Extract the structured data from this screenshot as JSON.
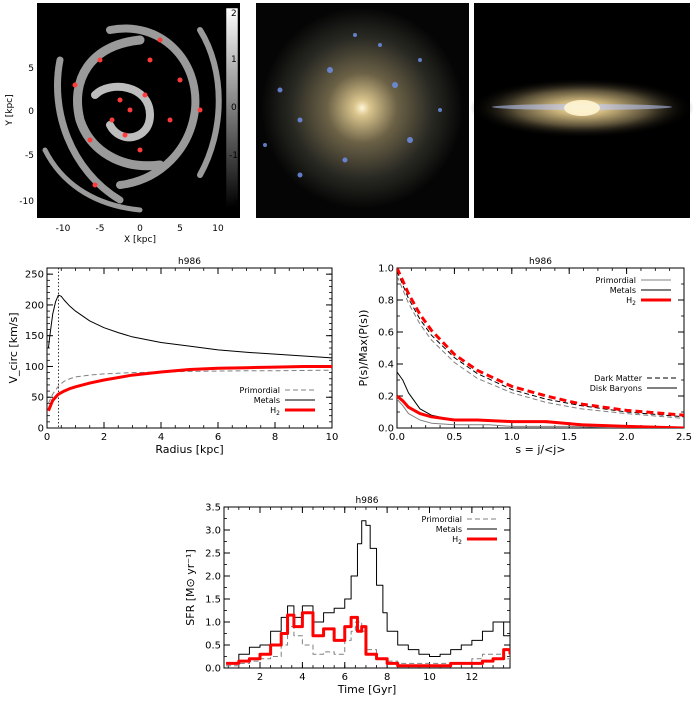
{
  "images": {
    "h2_map": {
      "xlabel": "X [kpc]",
      "ylabel": "Y [kpc]",
      "xticks": [
        -10,
        -5,
        0,
        5,
        10
      ],
      "yticks": [
        5,
        0,
        -5,
        -10
      ],
      "colorbar_ticks": [
        2,
        1,
        0,
        -1,
        -2
      ]
    }
  },
  "chart_data": [
    {
      "type": "line",
      "title": "h986",
      "xlabel": "Radius [kpc]",
      "ylabel": "V_circ [km/s]",
      "xlim": [
        0,
        10
      ],
      "ylim": [
        0,
        260
      ],
      "xticks": [
        0,
        2,
        4,
        6,
        8,
        10
      ],
      "yticks": [
        0,
        50,
        100,
        150,
        200,
        250
      ],
      "vline": 0.4,
      "legend": [
        "Primordial",
        "Metals",
        "H2"
      ],
      "legend_position": "bottom-right",
      "series": [
        {
          "name": "Primordial",
          "style": "dashed",
          "color": "#808080",
          "x": [
            0.05,
            0.2,
            0.4,
            0.6,
            0.8,
            1.0,
            1.5,
            2,
            3,
            4,
            5,
            6,
            7,
            8,
            9,
            10
          ],
          "y": [
            40,
            55,
            68,
            76,
            80,
            83,
            86,
            88,
            90,
            91,
            92,
            92.5,
            93,
            93,
            93.5,
            94
          ]
        },
        {
          "name": "Metals",
          "style": "solid",
          "color": "#000000",
          "x": [
            0.05,
            0.1,
            0.2,
            0.3,
            0.4,
            0.5,
            0.6,
            0.8,
            1.0,
            1.5,
            2,
            2.5,
            3,
            4,
            5,
            6,
            7,
            8,
            9,
            10
          ],
          "y": [
            130,
            150,
            185,
            205,
            216,
            214,
            208,
            198,
            190,
            174,
            163,
            155,
            148,
            139,
            133,
            127,
            123,
            120,
            117,
            114
          ]
        },
        {
          "name": "H2",
          "style": "thick",
          "color": "#ff0000",
          "x": [
            0.05,
            0.2,
            0.4,
            0.6,
            0.8,
            1.0,
            1.5,
            2,
            3,
            4,
            5,
            6,
            7,
            8,
            9,
            10
          ],
          "y": [
            28,
            45,
            55,
            60,
            64,
            67,
            73,
            78,
            86,
            91,
            95,
            97,
            98,
            99,
            100,
            100
          ]
        }
      ]
    },
    {
      "type": "line",
      "title": "h986",
      "xlabel": "s = j/<j>",
      "ylabel": "P(s)/Max(P(s))",
      "xlim": [
        0,
        2.5
      ],
      "ylim": [
        0,
        1.0
      ],
      "xticks": [
        0.0,
        0.5,
        1.0,
        1.5,
        2.0,
        2.5
      ],
      "yticks": [
        0.0,
        0.2,
        0.4,
        0.6,
        0.8,
        1.0
      ],
      "legend": [
        "Primordial",
        "Metals",
        "H2"
      ],
      "legend_position": "top-right",
      "legend2": [
        "Dark Matter",
        "Disk Baryons"
      ],
      "legend2_position": "right",
      "series": [
        {
          "name": "Primordial",
          "group": "Dark Matter",
          "style": "dashed",
          "color": "#808080",
          "x": [
            0,
            0.1,
            0.2,
            0.3,
            0.5,
            0.7,
            1.0,
            1.3,
            1.6,
            2.0,
            2.5
          ],
          "y": [
            0.95,
            0.78,
            0.65,
            0.55,
            0.41,
            0.31,
            0.22,
            0.16,
            0.12,
            0.09,
            0.06
          ]
        },
        {
          "name": "Metals",
          "group": "Dark Matter",
          "style": "dashed",
          "color": "#000000",
          "x": [
            0,
            0.1,
            0.2,
            0.3,
            0.5,
            0.7,
            1.0,
            1.3,
            1.6,
            2.0,
            2.5
          ],
          "y": [
            0.98,
            0.81,
            0.68,
            0.58,
            0.44,
            0.34,
            0.24,
            0.18,
            0.14,
            0.1,
            0.07
          ]
        },
        {
          "name": "H2",
          "group": "Dark Matter",
          "style": "thick-dashed",
          "color": "#ff0000",
          "x": [
            0,
            0.1,
            0.2,
            0.3,
            0.5,
            0.7,
            1.0,
            1.3,
            1.6,
            2.0,
            2.5
          ],
          "y": [
            1.0,
            0.84,
            0.71,
            0.61,
            0.46,
            0.36,
            0.26,
            0.2,
            0.15,
            0.11,
            0.08
          ]
        },
        {
          "name": "Primordial",
          "group": "Disk Baryons",
          "style": "solid",
          "color": "#808080",
          "x": [
            0,
            0.05,
            0.1,
            0.2,
            0.3,
            0.5,
            0.8,
            1.0,
            1.5,
            2.0,
            2.5
          ],
          "y": [
            0.18,
            0.14,
            0.09,
            0.05,
            0.03,
            0.02,
            0.02,
            0.01,
            0.01,
            0.0,
            0.0
          ]
        },
        {
          "name": "Metals",
          "group": "Disk Baryons",
          "style": "solid",
          "color": "#000000",
          "x": [
            0,
            0.05,
            0.1,
            0.2,
            0.3,
            0.5,
            0.8,
            1.0,
            1.5,
            2.0,
            2.5
          ],
          "y": [
            0.35,
            0.3,
            0.22,
            0.12,
            0.08,
            0.05,
            0.05,
            0.04,
            0.03,
            0.01,
            0.0
          ]
        },
        {
          "name": "H2",
          "group": "Disk Baryons",
          "style": "thick",
          "color": "#ff0000",
          "x": [
            0,
            0.05,
            0.1,
            0.2,
            0.3,
            0.5,
            0.7,
            1.0,
            1.3,
            1.6,
            2.0,
            2.5
          ],
          "y": [
            0.2,
            0.17,
            0.13,
            0.09,
            0.07,
            0.05,
            0.05,
            0.04,
            0.04,
            0.02,
            0.01,
            0.0
          ]
        }
      ]
    },
    {
      "type": "line",
      "title": "h986",
      "xlabel": "Time [Gyr]",
      "ylabel": "SFR [M⊙ yr⁻¹]",
      "xlim": [
        0.3,
        13.8
      ],
      "ylim": [
        0,
        3.5
      ],
      "xticks": [
        2,
        4,
        6,
        8,
        10,
        12
      ],
      "yticks": [
        0.0,
        0.5,
        1.0,
        1.5,
        2.0,
        2.5,
        3.0,
        3.5
      ],
      "legend": [
        "Primordial",
        "Metals",
        "H2"
      ],
      "legend_position": "top-right",
      "series": [
        {
          "name": "Primordial",
          "style": "dashed-step",
          "color": "#808080",
          "x": [
            0.4,
            1.0,
            1.5,
            2.0,
            2.5,
            3.0,
            3.3,
            3.6,
            4.0,
            4.5,
            5.0,
            5.5,
            6.0,
            6.3,
            6.5,
            6.8,
            7.0,
            7.5,
            8.0,
            8.5,
            9.0,
            10.0,
            11.0,
            12.0,
            12.5,
            13.0,
            13.5,
            13.8
          ],
          "y": [
            0.05,
            0.1,
            0.15,
            0.2,
            0.25,
            0.5,
            0.9,
            0.7,
            0.5,
            0.3,
            0.35,
            0.3,
            0.6,
            0.8,
            1.0,
            0.8,
            0.4,
            0.2,
            0.15,
            0.1,
            0.1,
            0.1,
            0.1,
            0.2,
            0.3,
            0.3,
            0.2,
            0.25
          ]
        },
        {
          "name": "Metals",
          "style": "solid-step",
          "color": "#000000",
          "x": [
            0.4,
            1.0,
            1.5,
            2.0,
            2.5,
            3.0,
            3.3,
            3.6,
            4.0,
            4.5,
            5.0,
            5.5,
            6.0,
            6.3,
            6.6,
            6.8,
            7.0,
            7.2,
            7.5,
            7.8,
            8.0,
            8.5,
            9.0,
            9.5,
            10.0,
            10.5,
            11.0,
            11.5,
            12.0,
            12.5,
            13.0,
            13.5,
            13.8
          ],
          "y": [
            0.1,
            0.3,
            0.45,
            0.5,
            0.8,
            1.1,
            1.35,
            1.1,
            1.35,
            1.0,
            1.2,
            1.3,
            1.5,
            2.0,
            2.7,
            3.2,
            3.1,
            2.6,
            1.8,
            1.2,
            0.8,
            0.5,
            0.4,
            0.3,
            0.25,
            0.3,
            0.4,
            0.5,
            0.6,
            0.8,
            1.0,
            0.7,
            0.5
          ]
        },
        {
          "name": "H2",
          "style": "thick-step",
          "color": "#ff0000",
          "x": [
            0.4,
            1.0,
            1.5,
            2.0,
            2.5,
            3.0,
            3.3,
            3.6,
            4.0,
            4.5,
            5.0,
            5.5,
            6.0,
            6.3,
            6.6,
            6.8,
            7.0,
            7.5,
            8.0,
            8.5,
            9.0,
            10.0,
            11.0,
            12.0,
            12.5,
            13.0,
            13.5,
            13.8
          ],
          "y": [
            0.1,
            0.15,
            0.2,
            0.3,
            0.5,
            0.75,
            1.15,
            0.9,
            1.2,
            0.7,
            0.85,
            0.6,
            0.9,
            1.1,
            0.8,
            0.9,
            0.3,
            0.2,
            0.1,
            0.05,
            0.05,
            0.05,
            0.1,
            0.1,
            0.15,
            0.2,
            0.4,
            0.3
          ]
        }
      ]
    }
  ]
}
